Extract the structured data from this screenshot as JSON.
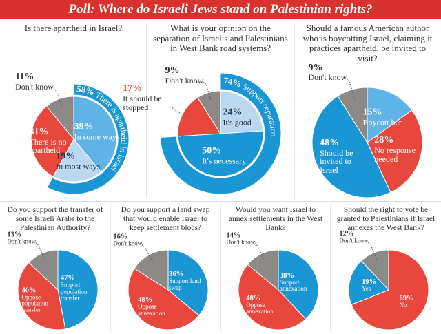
{
  "header": {
    "title": "Poll: Where do Israeli Jews stand on Palestinian rights?"
  },
  "chart_data": [
    {
      "type": "pie",
      "title": "Is there apartheid in Israel?",
      "categories": [
        "In some ways",
        "In most ways",
        "There is no apartheid",
        "Don't know"
      ],
      "values": [
        39,
        19,
        31,
        11
      ],
      "value_labels": [
        "39%",
        "19%",
        "31%",
        "11%"
      ],
      "colors": [
        "#5fb3e6",
        "#bcd8f0",
        "#e8473e",
        "#8c8987"
      ],
      "ring": {
        "name": "There is apartheid in Israel",
        "value": 58,
        "value_label": "58%",
        "color": "#1a96d4"
      }
    },
    {
      "type": "pie",
      "title": "What is your opinion on the separation of Israelis and Palestinians in West Bank road systems?",
      "categories": [
        "It's good",
        "It's necessary",
        "It should be stopped",
        "Don't know"
      ],
      "values": [
        24,
        50,
        17,
        9
      ],
      "value_labels": [
        "24%",
        "50%",
        "17%",
        "9%"
      ],
      "colors": [
        "#bcd8f0",
        "#1a96d4",
        "#e8473e",
        "#8c8987"
      ],
      "ring": {
        "name": "Support separation",
        "value": 74,
        "value_label": "74%",
        "color": "#1a96d4"
      }
    },
    {
      "type": "pie",
      "title": "Should a famous American author who is boycotting Israel, claiming it practices apartheid, be invited to visit?",
      "categories": [
        "Boycott her",
        "No response needed",
        "Should be invited to Israel",
        "Don't know"
      ],
      "values": [
        15,
        28,
        48,
        9
      ],
      "value_labels": [
        "15%",
        "28%",
        "48%",
        "9%"
      ],
      "colors": [
        "#5fb3e6",
        "#e8473e",
        "#1a96d4",
        "#8c8987"
      ]
    },
    {
      "type": "pie",
      "title": "Do you support the transfer of some Israeli Arabs to the Palestinian Authority?",
      "categories": [
        "Support population transfer",
        "Oppose population transfer",
        "Don't know"
      ],
      "values": [
        47,
        40,
        13
      ],
      "value_labels": [
        "47%",
        "40%",
        "13%"
      ],
      "colors": [
        "#1a96d4",
        "#e8473e",
        "#8c8987"
      ]
    },
    {
      "type": "pie",
      "title": "Do you support a land swap that would enable Israel to keep settlement blocs?",
      "categories": [
        "Support land swap",
        "Oppose annexation",
        "Don't know"
      ],
      "values": [
        36,
        48,
        16
      ],
      "value_labels": [
        "36%",
        "48%",
        "16%"
      ],
      "colors": [
        "#1a96d4",
        "#e8473e",
        "#8c8987"
      ]
    },
    {
      "type": "pie",
      "title": "Would you want Israel to annex settlements in the West Bank?",
      "categories": [
        "Support annexation",
        "Oppose annexation",
        "Don't know"
      ],
      "values": [
        38,
        48,
        14
      ],
      "value_labels": [
        "38%",
        "48%",
        "14%"
      ],
      "colors": [
        "#1a96d4",
        "#e8473e",
        "#8c8987"
      ]
    },
    {
      "type": "pie",
      "title": "Should the right to vote be granted to Palestinians if Israel annexes the West Bank?",
      "categories": [
        "No",
        "Yes",
        "Don't know"
      ],
      "values": [
        69,
        19,
        12
      ],
      "value_labels": [
        "69%",
        "19%",
        "12%"
      ],
      "colors": [
        "#e8473e",
        "#1a96d4",
        "#8c8987"
      ]
    }
  ]
}
